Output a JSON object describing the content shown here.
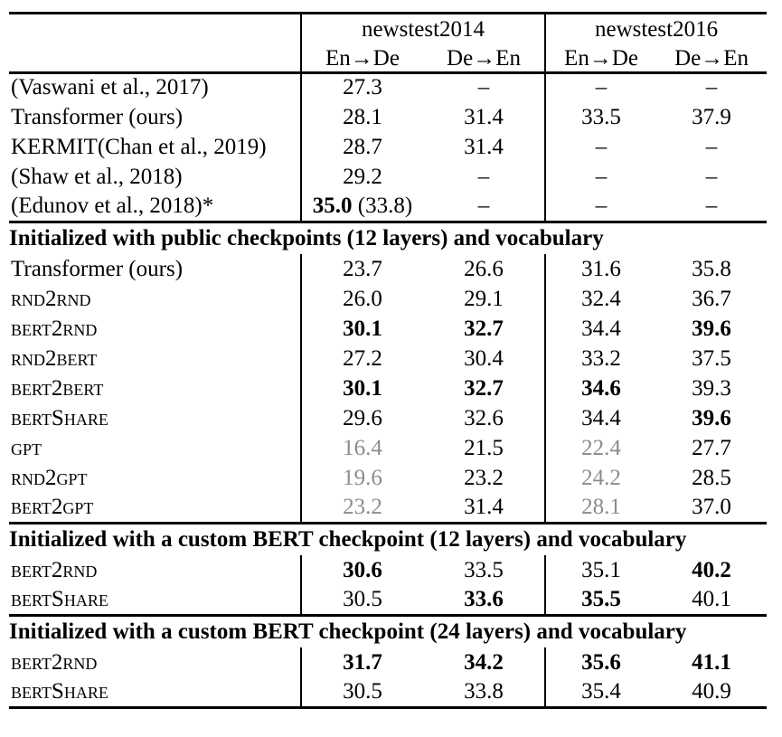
{
  "page": {
    "background": "#ffffff"
  },
  "colors": {
    "text": "#000000",
    "muted_values": "#8c8c8c",
    "rules": "#000000"
  },
  "table": {
    "column_groups": [
      {
        "label": "newstest2014"
      },
      {
        "label": "newstest2016"
      }
    ],
    "sub_headers": [
      "En→De",
      "De→En",
      "En→De",
      "De→En"
    ],
    "sections": [
      {
        "header": null,
        "rows": [
          {
            "label": "(Vaswani et al., 2017)",
            "sc": false,
            "cells": [
              {
                "v": "27.3",
                "style": "normal"
              },
              {
                "v": "–",
                "style": "normal"
              },
              {
                "v": "–",
                "style": "normal"
              },
              {
                "v": "–",
                "style": "normal"
              }
            ]
          },
          {
            "label": "Transformer (ours)",
            "sc": false,
            "cells": [
              {
                "v": "28.1",
                "style": "normal"
              },
              {
                "v": "31.4",
                "style": "normal"
              },
              {
                "v": "33.5",
                "style": "normal"
              },
              {
                "v": "37.9",
                "style": "normal"
              }
            ]
          },
          {
            "label": "KERMIT(Chan et al., 2019)",
            "sc": false,
            "cells": [
              {
                "v": "28.7",
                "style": "normal"
              },
              {
                "v": "31.4",
                "style": "normal"
              },
              {
                "v": "–",
                "style": "normal"
              },
              {
                "v": "–",
                "style": "normal"
              }
            ]
          },
          {
            "label": "(Shaw et al., 2018)",
            "sc": false,
            "cells": [
              {
                "v": "29.2",
                "style": "normal"
              },
              {
                "v": "–",
                "style": "normal"
              },
              {
                "v": "–",
                "style": "normal"
              },
              {
                "v": "–",
                "style": "normal"
              }
            ]
          },
          {
            "label": "(Edunov et al., 2018)*",
            "sc": false,
            "cells": [
              {
                "v": "35.0",
                "style": "bold",
                "note": " (33.8)"
              },
              {
                "v": "–",
                "style": "normal"
              },
              {
                "v": "–",
                "style": "normal"
              },
              {
                "v": "–",
                "style": "normal"
              }
            ]
          }
        ]
      },
      {
        "header": "Initialized with public checkpoints (12 layers) and vocabulary",
        "rows": [
          {
            "label": "Transformer (ours)",
            "sc": false,
            "cells": [
              {
                "v": "23.7",
                "style": "normal"
              },
              {
                "v": "26.6",
                "style": "normal"
              },
              {
                "v": "31.6",
                "style": "normal"
              },
              {
                "v": "35.8",
                "style": "normal"
              }
            ]
          },
          {
            "label": "rnd2rnd",
            "sc": true,
            "cells": [
              {
                "v": "26.0",
                "style": "normal"
              },
              {
                "v": "29.1",
                "style": "normal"
              },
              {
                "v": "32.4",
                "style": "normal"
              },
              {
                "v": "36.7",
                "style": "normal"
              }
            ]
          },
          {
            "label": "bert2rnd",
            "sc": true,
            "cells": [
              {
                "v": "30.1",
                "style": "bold"
              },
              {
                "v": "32.7",
                "style": "bold"
              },
              {
                "v": "34.4",
                "style": "normal"
              },
              {
                "v": "39.6",
                "style": "bold"
              }
            ]
          },
          {
            "label": "rnd2bert",
            "sc": true,
            "cells": [
              {
                "v": "27.2",
                "style": "normal"
              },
              {
                "v": "30.4",
                "style": "normal"
              },
              {
                "v": "33.2",
                "style": "normal"
              },
              {
                "v": "37.5",
                "style": "normal"
              }
            ]
          },
          {
            "label": "bert2bert",
            "sc": true,
            "cells": [
              {
                "v": "30.1",
                "style": "bold"
              },
              {
                "v": "32.7",
                "style": "bold"
              },
              {
                "v": "34.6",
                "style": "bold"
              },
              {
                "v": "39.3",
                "style": "normal"
              }
            ]
          },
          {
            "label": "bertShare",
            "sc": true,
            "cells": [
              {
                "v": "29.6",
                "style": "normal"
              },
              {
                "v": "32.6",
                "style": "normal"
              },
              {
                "v": "34.4",
                "style": "normal"
              },
              {
                "v": "39.6",
                "style": "bold"
              }
            ]
          },
          {
            "label": "gpt",
            "sc": true,
            "cells": [
              {
                "v": "16.4",
                "style": "gray"
              },
              {
                "v": "21.5",
                "style": "normal"
              },
              {
                "v": "22.4",
                "style": "gray"
              },
              {
                "v": "27.7",
                "style": "normal"
              }
            ]
          },
          {
            "label": "rnd2gpt",
            "sc": true,
            "cells": [
              {
                "v": "19.6",
                "style": "gray"
              },
              {
                "v": "23.2",
                "style": "normal"
              },
              {
                "v": "24.2",
                "style": "gray"
              },
              {
                "v": "28.5",
                "style": "normal"
              }
            ]
          },
          {
            "label": "bert2gpt",
            "sc": true,
            "cells": [
              {
                "v": "23.2",
                "style": "gray"
              },
              {
                "v": "31.4",
                "style": "normal"
              },
              {
                "v": "28.1",
                "style": "gray"
              },
              {
                "v": "37.0",
                "style": "normal"
              }
            ]
          }
        ]
      },
      {
        "header": "Initialized with a custom BERT checkpoint (12 layers) and vocabulary",
        "rows": [
          {
            "label": "bert2rnd",
            "sc": true,
            "cells": [
              {
                "v": "30.6",
                "style": "bold"
              },
              {
                "v": "33.5",
                "style": "normal"
              },
              {
                "v": "35.1",
                "style": "normal"
              },
              {
                "v": "40.2",
                "style": "bold"
              }
            ]
          },
          {
            "label": "bertShare",
            "sc": true,
            "cells": [
              {
                "v": "30.5",
                "style": "normal"
              },
              {
                "v": "33.6",
                "style": "bold"
              },
              {
                "v": "35.5",
                "style": "bold"
              },
              {
                "v": "40.1",
                "style": "normal"
              }
            ]
          }
        ]
      },
      {
        "header": "Initialized with a custom BERT checkpoint (24 layers) and vocabulary",
        "rows": [
          {
            "label": "bert2rnd",
            "sc": true,
            "cells": [
              {
                "v": "31.7",
                "style": "bold"
              },
              {
                "v": "34.2",
                "style": "bold"
              },
              {
                "v": "35.6",
                "style": "bold"
              },
              {
                "v": "41.1",
                "style": "bold"
              }
            ]
          },
          {
            "label": "bertShare",
            "sc": true,
            "cells": [
              {
                "v": "30.5",
                "style": "normal"
              },
              {
                "v": "33.8",
                "style": "normal"
              },
              {
                "v": "35.4",
                "style": "normal"
              },
              {
                "v": "40.9",
                "style": "normal"
              }
            ]
          }
        ]
      }
    ]
  }
}
